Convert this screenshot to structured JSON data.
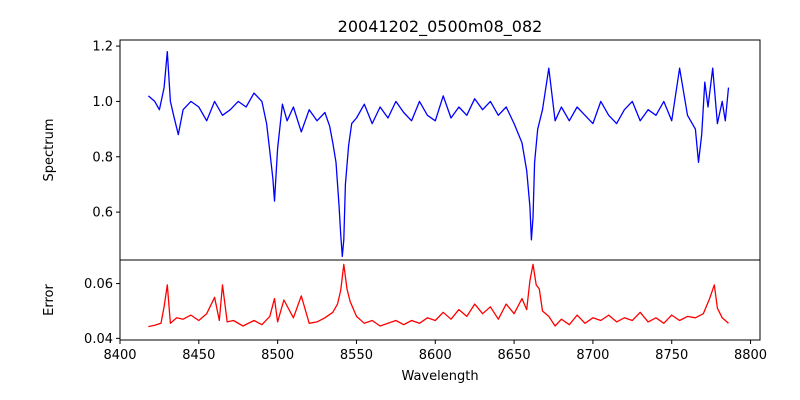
{
  "chart_data": {
    "type": "line",
    "title": "20041202_0500m08_082",
    "xlabel": "Wavelength",
    "xlim": [
      8400,
      8806
    ],
    "x_ticks": [
      8400,
      8450,
      8500,
      8550,
      8600,
      8650,
      8700,
      8750,
      8800
    ],
    "x_tick_labels": [
      "8400",
      "8450",
      "8500",
      "8550",
      "8600",
      "8650",
      "8700",
      "8750",
      "8800"
    ],
    "panels": [
      {
        "name": "spectrum",
        "ylabel": "Spectrum",
        "ylim": [
          0.427,
          1.222
        ],
        "y_ticks": [
          0.6,
          0.8,
          1.0,
          1.2
        ],
        "y_tick_labels": [
          "0.6",
          "0.8",
          "1.0",
          "1.2"
        ],
        "color": "#0000ff",
        "x": [
          8418,
          8422,
          8425,
          8428,
          8430,
          8432,
          8434,
          8437,
          8440,
          8445,
          8450,
          8455,
          8460,
          8465,
          8470,
          8475,
          8480,
          8485,
          8490,
          8493,
          8495,
          8497,
          8498,
          8500,
          8503,
          8506,
          8510,
          8515,
          8520,
          8525,
          8530,
          8533,
          8535,
          8537,
          8539,
          8540,
          8541,
          8542,
          8543,
          8545,
          8547,
          8550,
          8555,
          8560,
          8565,
          8570,
          8575,
          8580,
          8585,
          8590,
          8595,
          8600,
          8605,
          8610,
          8615,
          8620,
          8625,
          8630,
          8635,
          8640,
          8645,
          8650,
          8655,
          8658,
          8660,
          8661,
          8662,
          8663,
          8665,
          8668,
          8672,
          8676,
          8680,
          8685,
          8690,
          8695,
          8700,
          8705,
          8710,
          8715,
          8720,
          8725,
          8730,
          8735,
          8740,
          8745,
          8750,
          8755,
          8760,
          8765,
          8767,
          8769,
          8771,
          8773,
          8776,
          8779,
          8782,
          8784,
          8786
        ],
        "y": [
          1.02,
          1.0,
          0.97,
          1.05,
          1.18,
          1.0,
          0.95,
          0.88,
          0.97,
          1.0,
          0.98,
          0.93,
          1.0,
          0.95,
          0.97,
          1.0,
          0.98,
          1.03,
          1.0,
          0.92,
          0.82,
          0.72,
          0.64,
          0.83,
          0.99,
          0.93,
          0.98,
          0.89,
          0.97,
          0.93,
          0.96,
          0.91,
          0.85,
          0.78,
          0.62,
          0.52,
          0.44,
          0.5,
          0.7,
          0.84,
          0.92,
          0.94,
          0.99,
          0.92,
          0.98,
          0.94,
          1.0,
          0.96,
          0.93,
          1.0,
          0.95,
          0.93,
          1.02,
          0.94,
          0.98,
          0.95,
          1.01,
          0.97,
          1.0,
          0.95,
          0.98,
          0.92,
          0.85,
          0.75,
          0.62,
          0.5,
          0.58,
          0.78,
          0.9,
          0.97,
          1.12,
          0.93,
          0.98,
          0.93,
          0.98,
          0.95,
          0.92,
          1.0,
          0.95,
          0.92,
          0.97,
          1.0,
          0.93,
          0.97,
          0.95,
          1.0,
          0.93,
          1.12,
          0.95,
          0.9,
          0.78,
          0.88,
          1.07,
          0.98,
          1.12,
          0.92,
          1.0,
          0.93,
          1.05
        ]
      },
      {
        "name": "error",
        "ylabel": "Error",
        "ylim": [
          0.0394,
          0.0686
        ],
        "y_ticks": [
          0.04,
          0.06
        ],
        "y_tick_labels": [
          "0.04",
          "0.06"
        ],
        "color": "#ff0000",
        "x": [
          8418,
          8422,
          8426,
          8428,
          8430,
          8432,
          8436,
          8440,
          8445,
          8450,
          8455,
          8460,
          8463,
          8465,
          8468,
          8472,
          8478,
          8485,
          8490,
          8495,
          8498,
          8500,
          8504,
          8510,
          8515,
          8520,
          8525,
          8530,
          8535,
          8538,
          8540,
          8542,
          8544,
          8546,
          8550,
          8555,
          8560,
          8565,
          8570,
          8575,
          8580,
          8585,
          8590,
          8595,
          8600,
          8605,
          8610,
          8615,
          8620,
          8625,
          8630,
          8635,
          8640,
          8645,
          8650,
          8655,
          8658,
          8660,
          8662,
          8664,
          8666,
          8668,
          8672,
          8676,
          8680,
          8685,
          8690,
          8695,
          8700,
          8705,
          8710,
          8715,
          8720,
          8725,
          8730,
          8735,
          8740,
          8745,
          8750,
          8755,
          8760,
          8765,
          8770,
          8774,
          8777,
          8779,
          8782,
          8786
        ],
        "y": [
          0.0443,
          0.0448,
          0.0455,
          0.0515,
          0.0595,
          0.0455,
          0.0475,
          0.047,
          0.0485,
          0.0465,
          0.049,
          0.055,
          0.0465,
          0.0595,
          0.046,
          0.0465,
          0.0445,
          0.0465,
          0.045,
          0.048,
          0.0545,
          0.046,
          0.054,
          0.0475,
          0.0555,
          0.0455,
          0.046,
          0.0475,
          0.0495,
          0.0525,
          0.0575,
          0.067,
          0.058,
          0.0535,
          0.048,
          0.0455,
          0.0465,
          0.0445,
          0.0455,
          0.0465,
          0.045,
          0.0465,
          0.0455,
          0.0475,
          0.0465,
          0.0495,
          0.047,
          0.0505,
          0.048,
          0.0525,
          0.049,
          0.0515,
          0.047,
          0.0525,
          0.049,
          0.0545,
          0.0505,
          0.061,
          0.067,
          0.0595,
          0.058,
          0.05,
          0.048,
          0.0445,
          0.047,
          0.045,
          0.0485,
          0.0455,
          0.0475,
          0.0465,
          0.0485,
          0.046,
          0.0475,
          0.0465,
          0.0495,
          0.046,
          0.0475,
          0.0455,
          0.0485,
          0.0465,
          0.048,
          0.0475,
          0.049,
          0.0545,
          0.0595,
          0.051,
          0.0475,
          0.0455
        ]
      }
    ]
  }
}
